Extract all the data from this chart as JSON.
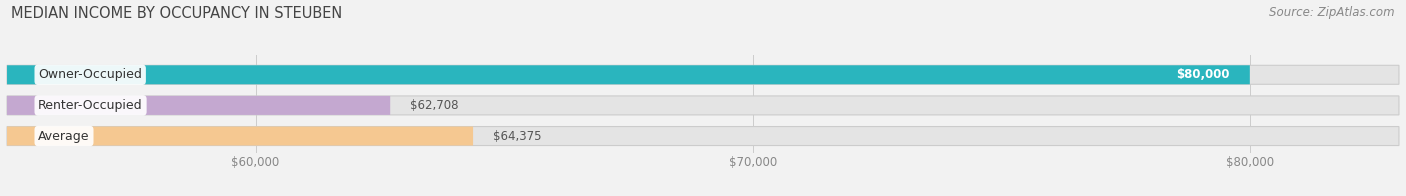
{
  "title": "MEDIAN INCOME BY OCCUPANCY IN STEUBEN",
  "source": "Source: ZipAtlas.com",
  "categories": [
    "Owner-Occupied",
    "Renter-Occupied",
    "Average"
  ],
  "values": [
    80000,
    62708,
    64375
  ],
  "bar_colors": [
    "#2ab5be",
    "#c4a8d0",
    "#f5c891"
  ],
  "bar_labels": [
    "$80,000",
    "$62,708",
    "$64,375"
  ],
  "label_inside": [
    true,
    false,
    false
  ],
  "xmin": 55000,
  "xmax": 83000,
  "xticks": [
    60000,
    70000,
    80000
  ],
  "xticklabels": [
    "$60,000",
    "$70,000",
    "$80,000"
  ],
  "bar_height": 0.62,
  "background_color": "#f2f2f2",
  "bar_bg_color": "#e4e4e4",
  "title_fontsize": 10.5,
  "source_fontsize": 8.5,
  "label_fontsize": 8.5,
  "tick_fontsize": 8.5,
  "cat_label_fontsize": 9
}
